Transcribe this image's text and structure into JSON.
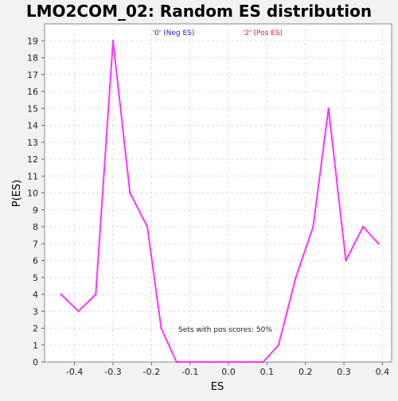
{
  "chart_data": {
    "type": "line",
    "title": "LMO2COM_02: Random ES distribution",
    "xlabel": "ES",
    "ylabel": "P(ES)",
    "xlim": [
      -0.478,
      0.424
    ],
    "ylim": [
      0,
      20
    ],
    "x_ticks": [
      -0.4,
      -0.3,
      -0.2,
      -0.1,
      0.0,
      0.1,
      0.2,
      0.3,
      0.4
    ],
    "x_tick_labels": [
      "-0.4",
      "-0.3",
      "-0.2",
      "-0.1",
      "0.0",
      "0.1",
      "0.2",
      "0.3",
      "0.4"
    ],
    "y_ticks": [
      0,
      1,
      2,
      3,
      4,
      5,
      6,
      7,
      8,
      9,
      10,
      11,
      12,
      13,
      14,
      15,
      16,
      17,
      18,
      19
    ],
    "grid": true,
    "legend": [
      {
        "label": "'0' (Neg ES)",
        "color": "#2020c0"
      },
      {
        "label": "'2' (Pos ES)",
        "color": "#e02020"
      }
    ],
    "annotation": "Sets with pos scores: 50%",
    "series": [
      {
        "color": "#ff33ff",
        "x": [
          -0.435,
          -0.39,
          -0.345,
          -0.3,
          -0.256,
          -0.211,
          -0.175,
          -0.135,
          -0.09,
          -0.045,
          0.0,
          0.045,
          0.09,
          0.13,
          0.175,
          0.22,
          0.26,
          0.305,
          0.35,
          0.39
        ],
        "y": [
          4,
          3,
          4,
          19,
          10,
          8,
          2,
          0,
          0,
          0,
          0,
          0,
          0,
          1,
          5,
          8,
          15,
          6,
          8,
          7
        ]
      }
    ]
  }
}
